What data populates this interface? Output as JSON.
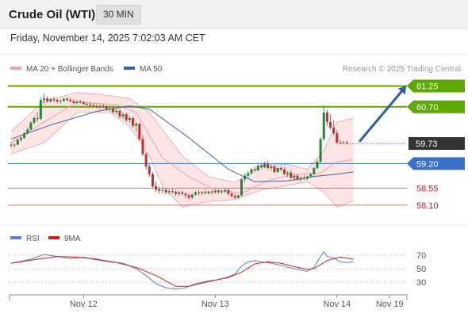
{
  "header": {
    "title": "Crude Oil (WTI)",
    "timeframe": "30 MIN"
  },
  "timestamp": "Friday, November 14, 2025 7:02:03 AM CET",
  "colors": {
    "bollinger": "#f4a0a0",
    "bollinger_fill": "#fde0e0",
    "ma50": "#3d5ea8",
    "resistance": "#5fa800",
    "pivot": "#3a70c8",
    "support": "#e07070",
    "current": "#333333",
    "arrow": "#2e5fa4",
    "rsi": "#5a7fd6",
    "rsi_ma": "#e01818",
    "candle_up": "#1e8a38",
    "candle_down": "#c03030"
  },
  "chart_data": [
    {
      "type": "candlestick",
      "legend": [
        {
          "name": "MA 20 + Bollinger Bands",
          "color": "#f4a0a0"
        },
        {
          "name": "MA 50",
          "color": "#3d5ea8"
        }
      ],
      "attribution": "Research © 2025 Trading Central",
      "ylim": [
        57.95,
        61.45
      ],
      "ohlc": [
        [
          59.7,
          59.75,
          59.62,
          59.68
        ],
        [
          59.68,
          59.74,
          59.63,
          59.7
        ],
        [
          59.7,
          59.85,
          59.68,
          59.83
        ],
        [
          59.83,
          59.9,
          59.78,
          59.88
        ],
        [
          59.88,
          60.05,
          59.85,
          60.0
        ],
        [
          60.0,
          60.15,
          59.96,
          60.1
        ],
        [
          60.1,
          60.32,
          60.08,
          60.28
        ],
        [
          60.28,
          60.45,
          60.24,
          60.4
        ],
        [
          60.4,
          60.55,
          60.3,
          60.38
        ],
        [
          60.38,
          60.95,
          60.35,
          60.88
        ],
        [
          60.88,
          61.05,
          60.78,
          60.92
        ],
        [
          60.92,
          60.98,
          60.8,
          60.85
        ],
        [
          60.85,
          60.95,
          60.8,
          60.9
        ],
        [
          60.9,
          60.97,
          60.82,
          60.88
        ],
        [
          60.88,
          60.92,
          60.8,
          60.84
        ],
        [
          60.84,
          60.9,
          60.78,
          60.86
        ],
        [
          60.86,
          60.94,
          60.82,
          60.91
        ],
        [
          60.91,
          60.96,
          60.85,
          60.88
        ],
        [
          60.88,
          60.93,
          60.82,
          60.85
        ],
        [
          60.85,
          60.9,
          60.78,
          60.8
        ],
        [
          60.8,
          60.88,
          60.76,
          60.84
        ],
        [
          60.84,
          60.89,
          60.78,
          60.82
        ],
        [
          60.82,
          60.86,
          60.74,
          60.78
        ],
        [
          60.78,
          60.84,
          60.72,
          60.76
        ],
        [
          60.76,
          60.82,
          60.7,
          60.74
        ],
        [
          60.74,
          60.8,
          60.68,
          60.72
        ],
        [
          60.72,
          60.78,
          60.66,
          60.7
        ],
        [
          60.7,
          60.76,
          60.64,
          60.72
        ],
        [
          60.72,
          60.78,
          60.66,
          60.7
        ],
        [
          60.7,
          60.74,
          60.6,
          60.64
        ],
        [
          60.64,
          60.7,
          60.58,
          60.66
        ],
        [
          60.66,
          60.7,
          60.52,
          60.56
        ],
        [
          60.56,
          60.64,
          60.5,
          60.6
        ],
        [
          60.6,
          60.62,
          60.4,
          60.45
        ],
        [
          60.45,
          60.55,
          60.38,
          60.5
        ],
        [
          60.5,
          60.54,
          60.3,
          60.35
        ],
        [
          60.35,
          60.45,
          60.28,
          60.4
        ],
        [
          60.4,
          60.44,
          60.15,
          60.2
        ],
        [
          60.2,
          60.3,
          60.05,
          60.25
        ],
        [
          60.25,
          60.28,
          59.8,
          59.85
        ],
        [
          59.85,
          59.95,
          59.4,
          59.45
        ],
        [
          59.45,
          59.5,
          59.05,
          59.12
        ],
        [
          59.12,
          59.18,
          58.85,
          58.92
        ],
        [
          58.92,
          58.98,
          58.55,
          58.6
        ],
        [
          58.6,
          58.72,
          58.45,
          58.52
        ],
        [
          58.52,
          58.6,
          58.4,
          58.48
        ],
        [
          58.48,
          58.56,
          58.4,
          58.5
        ],
        [
          58.5,
          58.56,
          58.38,
          58.44
        ],
        [
          58.44,
          58.52,
          58.38,
          58.47
        ],
        [
          58.47,
          58.54,
          58.4,
          58.45
        ],
        [
          58.45,
          58.5,
          58.34,
          58.4
        ],
        [
          58.4,
          58.48,
          58.34,
          58.44
        ],
        [
          58.44,
          58.5,
          58.36,
          58.4
        ],
        [
          58.4,
          58.44,
          58.28,
          58.36
        ],
        [
          58.36,
          58.42,
          58.24,
          58.3
        ],
        [
          58.3,
          58.4,
          58.26,
          58.38
        ],
        [
          58.38,
          58.48,
          58.34,
          58.44
        ],
        [
          58.44,
          58.5,
          58.36,
          58.42
        ],
        [
          58.42,
          58.48,
          58.36,
          58.45
        ],
        [
          58.45,
          58.5,
          58.38,
          58.42
        ],
        [
          58.42,
          58.48,
          58.38,
          58.46
        ],
        [
          58.46,
          58.5,
          58.38,
          58.44
        ],
        [
          58.44,
          58.52,
          58.4,
          58.48
        ],
        [
          58.48,
          58.52,
          58.4,
          58.45
        ],
        [
          58.45,
          58.5,
          58.4,
          58.46
        ],
        [
          58.46,
          58.55,
          58.42,
          58.5
        ],
        [
          58.5,
          58.54,
          58.36,
          58.4
        ],
        [
          58.4,
          58.46,
          58.3,
          58.34
        ],
        [
          58.34,
          58.4,
          58.26,
          58.3
        ],
        [
          58.3,
          58.38,
          58.26,
          58.36
        ],
        [
          58.36,
          58.8,
          58.34,
          58.78
        ],
        [
          58.78,
          58.95,
          58.7,
          58.88
        ],
        [
          58.88,
          59.0,
          58.82,
          58.95
        ],
        [
          58.95,
          59.08,
          58.9,
          59.05
        ],
        [
          59.05,
          59.12,
          58.98,
          59.02
        ],
        [
          59.02,
          59.18,
          59.0,
          59.15
        ],
        [
          59.15,
          59.22,
          59.05,
          59.1
        ],
        [
          59.1,
          59.25,
          59.08,
          59.2
        ],
        [
          59.2,
          59.28,
          59.05,
          59.08
        ],
        [
          59.08,
          59.18,
          59.0,
          59.12
        ],
        [
          59.12,
          59.16,
          58.95,
          58.98
        ],
        [
          58.98,
          59.1,
          58.95,
          59.08
        ],
        [
          59.08,
          59.14,
          59.0,
          59.04
        ],
        [
          59.04,
          59.1,
          58.9,
          58.92
        ],
        [
          58.92,
          59.0,
          58.85,
          58.96
        ],
        [
          58.96,
          59.02,
          58.8,
          58.82
        ],
        [
          58.82,
          58.92,
          58.75,
          58.88
        ],
        [
          58.88,
          58.92,
          58.74,
          58.78
        ],
        [
          58.78,
          58.86,
          58.72,
          58.82
        ],
        [
          58.82,
          58.9,
          58.76,
          58.8
        ],
        [
          58.8,
          58.88,
          58.76,
          58.86
        ],
        [
          58.86,
          58.95,
          58.82,
          58.92
        ],
        [
          58.92,
          59.1,
          58.88,
          59.08
        ],
        [
          59.08,
          59.3,
          59.05,
          59.25
        ],
        [
          59.25,
          59.9,
          59.2,
          59.85
        ],
        [
          59.85,
          60.75,
          59.8,
          60.55
        ],
        [
          60.55,
          60.62,
          60.2,
          60.3
        ],
        [
          60.3,
          60.5,
          60.1,
          60.15
        ],
        [
          60.15,
          60.35,
          59.95,
          60.0
        ],
        [
          60.0,
          60.08,
          59.72,
          59.75
        ],
        [
          59.75,
          59.82,
          59.7,
          59.74
        ],
        [
          59.74,
          59.8,
          59.7,
          59.76
        ],
        [
          59.76,
          59.8,
          59.7,
          59.73
        ]
      ],
      "overlays": {
        "ma50": [
          [
            0,
            59.85
          ],
          [
            12,
            60.22
          ],
          [
            26,
            60.58
          ],
          [
            36,
            60.72
          ],
          [
            42,
            60.64
          ],
          [
            54,
            59.88
          ],
          [
            66,
            59.05
          ],
          [
            74,
            58.72
          ],
          [
            84,
            58.74
          ],
          [
            92,
            58.86
          ],
          [
            99,
            58.92
          ],
          [
            104,
            58.98
          ]
        ],
        "bollinger_mid": [
          [
            0,
            59.75
          ],
          [
            10,
            60.3
          ],
          [
            20,
            60.82
          ],
          [
            32,
            60.76
          ],
          [
            38,
            60.55
          ],
          [
            46,
            59.35
          ],
          [
            54,
            58.85
          ],
          [
            62,
            58.5
          ],
          [
            70,
            58.42
          ],
          [
            78,
            58.75
          ],
          [
            86,
            58.92
          ],
          [
            94,
            58.95
          ],
          [
            99,
            59.25
          ],
          [
            104,
            59.3
          ]
        ],
        "bollinger_upper": [
          [
            0,
            60.05
          ],
          [
            10,
            60.85
          ],
          [
            20,
            61.08
          ],
          [
            30,
            61.0
          ],
          [
            36,
            60.92
          ],
          [
            42,
            60.55
          ],
          [
            52,
            59.4
          ],
          [
            60,
            58.85
          ],
          [
            68,
            58.7
          ],
          [
            76,
            59.15
          ],
          [
            84,
            59.18
          ],
          [
            90,
            59.05
          ],
          [
            95,
            59.55
          ],
          [
            99,
            60.3
          ],
          [
            104,
            60.4
          ]
        ],
        "bollinger_lower": [
          [
            0,
            59.45
          ],
          [
            10,
            59.75
          ],
          [
            20,
            60.55
          ],
          [
            30,
            60.55
          ],
          [
            36,
            60.18
          ],
          [
            42,
            59.4
          ],
          [
            46,
            58.6
          ],
          [
            52,
            58.05
          ],
          [
            60,
            58.2
          ],
          [
            68,
            58.25
          ],
          [
            76,
            58.5
          ],
          [
            84,
            58.62
          ],
          [
            90,
            58.72
          ],
          [
            95,
            58.45
          ],
          [
            99,
            58.05
          ],
          [
            104,
            58.22
          ]
        ]
      },
      "levels": [
        {
          "label": "61.25",
          "value": 61.25,
          "kind": "resistance"
        },
        {
          "label": "60.70",
          "value": 60.7,
          "kind": "resistance"
        },
        {
          "label": "59.73",
          "value": 59.73,
          "kind": "current"
        },
        {
          "label": "59.20",
          "value": 59.2,
          "kind": "pivot"
        },
        {
          "label": "58.55",
          "value": 58.55,
          "kind": "support"
        },
        {
          "label": "58.10",
          "value": 58.1,
          "kind": "support"
        }
      ],
      "forecast_arrow": {
        "from": [
          106,
          59.8
        ],
        "to": [
          120,
          61.25
        ]
      },
      "x_extent": [
        0,
        122
      ]
    },
    {
      "type": "line",
      "legend": [
        {
          "name": "RSI",
          "color": "#5a7fd6"
        },
        {
          "name": "9MA",
          "color": "#e01818"
        }
      ],
      "ylim": [
        15,
        85
      ],
      "ytick_labels": [
        {
          "label": "70",
          "value": 70
        },
        {
          "label": "50",
          "value": 50
        },
        {
          "label": "30",
          "value": 30
        }
      ],
      "series": [
        {
          "name": "RSI",
          "points": [
            [
              0,
              58
            ],
            [
              6,
              64
            ],
            [
              10,
              71
            ],
            [
              14,
              68
            ],
            [
              18,
              65
            ],
            [
              22,
              67
            ],
            [
              26,
              63
            ],
            [
              30,
              60
            ],
            [
              34,
              58
            ],
            [
              38,
              50
            ],
            [
              41,
              40
            ],
            [
              44,
              28
            ],
            [
              47,
              22
            ],
            [
              50,
              20
            ],
            [
              53,
              22
            ],
            [
              56,
              28
            ],
            [
              60,
              32
            ],
            [
              63,
              34
            ],
            [
              66,
              38
            ],
            [
              68,
              42
            ],
            [
              70,
              54
            ],
            [
              72,
              60
            ],
            [
              74,
              62
            ],
            [
              76,
              60
            ],
            [
              79,
              58
            ],
            [
              82,
              55
            ],
            [
              84,
              52
            ],
            [
              86,
              50
            ],
            [
              88,
              48
            ],
            [
              90,
              46
            ],
            [
              92,
              52
            ],
            [
              94,
              68
            ],
            [
              95,
              75
            ],
            [
              96,
              68
            ],
            [
              98,
              66
            ],
            [
              100,
              60
            ],
            [
              102,
              59
            ],
            [
              104,
              60
            ]
          ]
        },
        {
          "name": "9MA",
          "points": [
            [
              0,
              58
            ],
            [
              8,
              64
            ],
            [
              14,
              68
            ],
            [
              20,
              67
            ],
            [
              26,
              64
            ],
            [
              32,
              59
            ],
            [
              38,
              52
            ],
            [
              44,
              40
            ],
            [
              50,
              24
            ],
            [
              54,
              24
            ],
            [
              60,
              31
            ],
            [
              66,
              37
            ],
            [
              70,
              45
            ],
            [
              74,
              57
            ],
            [
              78,
              60
            ],
            [
              82,
              58
            ],
            [
              86,
              53
            ],
            [
              90,
              49
            ],
            [
              92,
              50
            ],
            [
              96,
              62
            ],
            [
              100,
              67
            ],
            [
              104,
              64
            ]
          ]
        }
      ],
      "xlim": [
        0,
        122
      ]
    }
  ],
  "x_axis": {
    "ticks": [
      {
        "label": "Nov 12",
        "x": 22
      },
      {
        "label": "Nov 13",
        "x": 62
      },
      {
        "label": "Nov 14",
        "x": 99
      },
      {
        "label": "Nov 19",
        "x": 115
      }
    ]
  }
}
